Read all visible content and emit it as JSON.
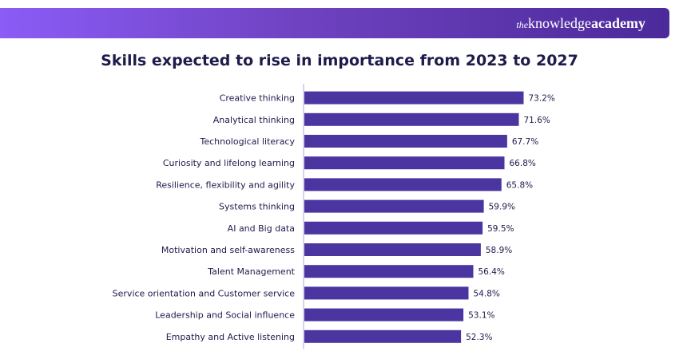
{
  "brand": {
    "prefix": "the",
    "word1": "knowledge",
    "word2": "academy"
  },
  "colors": {
    "bar": "#4b35a0",
    "axis": "#b0a8d0",
    "text": "#1e1b4b"
  },
  "chart_data": {
    "type": "bar",
    "orientation": "horizontal",
    "title": "Skills expected to rise in importance from 2023 to 2027",
    "categories": [
      "Creative thinking",
      "Analytical thinking",
      "Technological literacy",
      "Curiosity and lifelong learning",
      "Resilience, flexibility and agility",
      "Systems thinking",
      "AI and Big data",
      "Motivation and self-awareness",
      "Talent Management",
      "Service orientation and Customer service",
      "Leadership and Social influence",
      "Empathy and Active listening"
    ],
    "values": [
      73.2,
      71.6,
      67.7,
      66.8,
      65.8,
      59.9,
      59.5,
      58.9,
      56.4,
      54.8,
      53.1,
      52.3
    ],
    "value_labels": [
      "73.2%",
      "71.6%",
      "67.7%",
      "66.8%",
      "65.8%",
      "59.9%",
      "59.5%",
      "58.9%",
      "56.4%",
      "54.8%",
      "53.1%",
      "52.3%"
    ],
    "xlabel": "",
    "ylabel": "",
    "xlim": [
      0,
      100
    ],
    "grid": false,
    "legend": "none"
  }
}
